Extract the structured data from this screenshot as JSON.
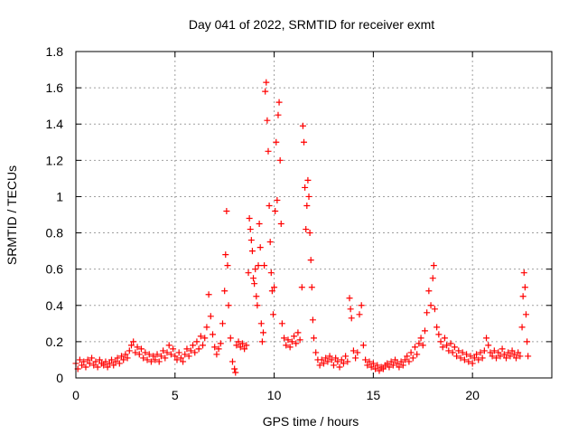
{
  "chart_data": {
    "type": "scatter",
    "title": "Day 041 of 2022, SRMTID for receiver exmt",
    "xlabel": "GPS time / hours",
    "ylabel": "SRMTID / TECUs",
    "xlim": [
      0,
      24
    ],
    "ylim": [
      0,
      1.8
    ],
    "xticks": [
      0,
      5,
      10,
      15,
      20
    ],
    "yticks": [
      0,
      0.2,
      0.4,
      0.6,
      0.8,
      1,
      1.2,
      1.4,
      1.6,
      1.8
    ],
    "ytick_labels": [
      "0",
      "0.2",
      "0.4",
      "0.6",
      "0.8",
      "1",
      "1.2",
      "1.4",
      "1.6",
      "1.8"
    ],
    "grid": true,
    "marker": "+",
    "color": "#ff0000",
    "series": [
      {
        "name": "SRMTID",
        "points": [
          [
            0.0,
            0.08
          ],
          [
            0.1,
            0.05
          ],
          [
            0.2,
            0.1
          ],
          [
            0.3,
            0.07
          ],
          [
            0.4,
            0.09
          ],
          [
            0.5,
            0.06
          ],
          [
            0.6,
            0.1
          ],
          [
            0.7,
            0.08
          ],
          [
            0.8,
            0.11
          ],
          [
            0.9,
            0.07
          ],
          [
            1.0,
            0.09
          ],
          [
            1.1,
            0.06
          ],
          [
            1.2,
            0.1
          ],
          [
            1.3,
            0.08
          ],
          [
            1.4,
            0.07
          ],
          [
            1.5,
            0.09
          ],
          [
            1.6,
            0.06
          ],
          [
            1.7,
            0.08
          ],
          [
            1.8,
            0.1
          ],
          [
            1.9,
            0.07
          ],
          [
            2.0,
            0.09
          ],
          [
            2.1,
            0.11
          ],
          [
            2.2,
            0.08
          ],
          [
            2.3,
            0.12
          ],
          [
            2.4,
            0.1
          ],
          [
            2.5,
            0.13
          ],
          [
            2.6,
            0.11
          ],
          [
            2.7,
            0.15
          ],
          [
            2.8,
            0.18
          ],
          [
            2.9,
            0.2
          ],
          [
            3.0,
            0.14
          ],
          [
            3.1,
            0.17
          ],
          [
            3.2,
            0.13
          ],
          [
            3.3,
            0.16
          ],
          [
            3.4,
            0.11
          ],
          [
            3.5,
            0.14
          ],
          [
            3.6,
            0.1
          ],
          [
            3.7,
            0.13
          ],
          [
            3.8,
            0.09
          ],
          [
            3.9,
            0.12
          ],
          [
            4.0,
            0.1
          ],
          [
            4.1,
            0.13
          ],
          [
            4.2,
            0.09
          ],
          [
            4.3,
            0.12
          ],
          [
            4.4,
            0.15
          ],
          [
            4.5,
            0.11
          ],
          [
            4.6,
            0.14
          ],
          [
            4.7,
            0.18
          ],
          [
            4.8,
            0.13
          ],
          [
            4.9,
            0.16
          ],
          [
            5.0,
            0.12
          ],
          [
            5.1,
            0.1
          ],
          [
            5.2,
            0.14
          ],
          [
            5.3,
            0.11
          ],
          [
            5.4,
            0.09
          ],
          [
            5.5,
            0.13
          ],
          [
            5.6,
            0.16
          ],
          [
            5.7,
            0.12
          ],
          [
            5.8,
            0.15
          ],
          [
            5.9,
            0.18
          ],
          [
            6.0,
            0.14
          ],
          [
            6.1,
            0.2
          ],
          [
            6.2,
            0.16
          ],
          [
            6.3,
            0.23
          ],
          [
            6.4,
            0.18
          ],
          [
            6.5,
            0.22
          ],
          [
            6.6,
            0.28
          ],
          [
            6.7,
            0.46
          ],
          [
            6.8,
            0.34
          ],
          [
            6.9,
            0.24
          ],
          [
            7.0,
            0.17
          ],
          [
            7.1,
            0.13
          ],
          [
            7.2,
            0.16
          ],
          [
            7.3,
            0.19
          ],
          [
            7.4,
            0.3
          ],
          [
            7.5,
            0.48
          ],
          [
            7.55,
            0.68
          ],
          [
            7.6,
            0.92
          ],
          [
            7.65,
            0.62
          ],
          [
            7.7,
            0.4
          ],
          [
            7.8,
            0.22
          ],
          [
            7.9,
            0.09
          ],
          [
            8.0,
            0.05
          ],
          [
            8.05,
            0.03
          ],
          [
            8.1,
            0.18
          ],
          [
            8.2,
            0.2
          ],
          [
            8.3,
            0.17
          ],
          [
            8.4,
            0.19
          ],
          [
            8.5,
            0.16
          ],
          [
            8.6,
            0.18
          ],
          [
            8.7,
            0.58
          ],
          [
            8.75,
            0.88
          ],
          [
            8.8,
            0.82
          ],
          [
            8.85,
            0.76
          ],
          [
            8.9,
            0.7
          ],
          [
            8.95,
            0.55
          ],
          [
            9.0,
            0.52
          ],
          [
            9.05,
            0.6
          ],
          [
            9.1,
            0.45
          ],
          [
            9.15,
            0.4
          ],
          [
            9.2,
            0.62
          ],
          [
            9.25,
            0.85
          ],
          [
            9.3,
            0.72
          ],
          [
            9.35,
            0.3
          ],
          [
            9.4,
            0.2
          ],
          [
            9.45,
            0.25
          ],
          [
            9.5,
            0.62
          ],
          [
            9.55,
            1.58
          ],
          [
            9.6,
            1.63
          ],
          [
            9.65,
            1.42
          ],
          [
            9.7,
            1.25
          ],
          [
            9.75,
            0.95
          ],
          [
            9.8,
            0.75
          ],
          [
            9.85,
            0.58
          ],
          [
            9.9,
            0.48
          ],
          [
            9.95,
            0.35
          ],
          [
            10.0,
            0.5
          ],
          [
            10.05,
            0.92
          ],
          [
            10.1,
            1.3
          ],
          [
            10.15,
            0.98
          ],
          [
            10.2,
            1.45
          ],
          [
            10.25,
            1.52
          ],
          [
            10.3,
            1.2
          ],
          [
            10.35,
            0.85
          ],
          [
            10.4,
            0.3
          ],
          [
            10.5,
            0.22
          ],
          [
            10.6,
            0.18
          ],
          [
            10.7,
            0.21
          ],
          [
            10.8,
            0.17
          ],
          [
            10.9,
            0.2
          ],
          [
            11.0,
            0.23
          ],
          [
            11.1,
            0.19
          ],
          [
            11.2,
            0.25
          ],
          [
            11.3,
            0.21
          ],
          [
            11.4,
            0.5
          ],
          [
            11.45,
            1.39
          ],
          [
            11.5,
            1.3
          ],
          [
            11.55,
            1.05
          ],
          [
            11.6,
            0.82
          ],
          [
            11.65,
            0.95
          ],
          [
            11.7,
            1.09
          ],
          [
            11.75,
            1.0
          ],
          [
            11.8,
            0.8
          ],
          [
            11.85,
            0.65
          ],
          [
            11.9,
            0.5
          ],
          [
            11.95,
            0.32
          ],
          [
            12.0,
            0.22
          ],
          [
            12.1,
            0.14
          ],
          [
            12.2,
            0.1
          ],
          [
            12.3,
            0.07
          ],
          [
            12.4,
            0.1
          ],
          [
            12.5,
            0.08
          ],
          [
            12.6,
            0.11
          ],
          [
            12.7,
            0.09
          ],
          [
            12.8,
            0.12
          ],
          [
            12.9,
            0.1
          ],
          [
            13.0,
            0.07
          ],
          [
            13.1,
            0.11
          ],
          [
            13.2,
            0.09
          ],
          [
            13.3,
            0.06
          ],
          [
            13.4,
            0.1
          ],
          [
            13.5,
            0.08
          ],
          [
            13.6,
            0.12
          ],
          [
            13.7,
            0.09
          ],
          [
            13.8,
            0.44
          ],
          [
            13.85,
            0.38
          ],
          [
            13.9,
            0.33
          ],
          [
            14.0,
            0.15
          ],
          [
            14.1,
            0.11
          ],
          [
            14.2,
            0.14
          ],
          [
            14.3,
            0.35
          ],
          [
            14.4,
            0.4
          ],
          [
            14.5,
            0.18
          ],
          [
            14.6,
            0.1
          ],
          [
            14.7,
            0.07
          ],
          [
            14.8,
            0.09
          ],
          [
            14.9,
            0.06
          ],
          [
            15.0,
            0.08
          ],
          [
            15.1,
            0.05
          ],
          [
            15.2,
            0.07
          ],
          [
            15.3,
            0.04
          ],
          [
            15.4,
            0.06
          ],
          [
            15.5,
            0.05
          ],
          [
            15.6,
            0.07
          ],
          [
            15.7,
            0.08
          ],
          [
            15.8,
            0.06
          ],
          [
            15.9,
            0.09
          ],
          [
            16.0,
            0.07
          ],
          [
            16.1,
            0.1
          ],
          [
            16.2,
            0.08
          ],
          [
            16.3,
            0.06
          ],
          [
            16.4,
            0.09
          ],
          [
            16.5,
            0.07
          ],
          [
            16.6,
            0.1
          ],
          [
            16.7,
            0.12
          ],
          [
            16.8,
            0.09
          ],
          [
            16.9,
            0.14
          ],
          [
            17.0,
            0.11
          ],
          [
            17.1,
            0.17
          ],
          [
            17.2,
            0.13
          ],
          [
            17.3,
            0.19
          ],
          [
            17.4,
            0.22
          ],
          [
            17.5,
            0.18
          ],
          [
            17.6,
            0.26
          ],
          [
            17.7,
            0.36
          ],
          [
            17.8,
            0.48
          ],
          [
            17.9,
            0.4
          ],
          [
            18.0,
            0.55
          ],
          [
            18.05,
            0.62
          ],
          [
            18.1,
            0.38
          ],
          [
            18.2,
            0.28
          ],
          [
            18.3,
            0.24
          ],
          [
            18.4,
            0.2
          ],
          [
            18.5,
            0.17
          ],
          [
            18.6,
            0.22
          ],
          [
            18.7,
            0.18
          ],
          [
            18.8,
            0.15
          ],
          [
            18.9,
            0.19
          ],
          [
            19.0,
            0.14
          ],
          [
            19.1,
            0.17
          ],
          [
            19.2,
            0.12
          ],
          [
            19.3,
            0.15
          ],
          [
            19.4,
            0.11
          ],
          [
            19.5,
            0.14
          ],
          [
            19.6,
            0.1
          ],
          [
            19.7,
            0.13
          ],
          [
            19.8,
            0.09
          ],
          [
            19.9,
            0.12
          ],
          [
            20.0,
            0.08
          ],
          [
            20.1,
            0.11
          ],
          [
            20.2,
            0.13
          ],
          [
            20.3,
            0.1
          ],
          [
            20.4,
            0.14
          ],
          [
            20.5,
            0.11
          ],
          [
            20.6,
            0.15
          ],
          [
            20.7,
            0.22
          ],
          [
            20.8,
            0.18
          ],
          [
            20.9,
            0.14
          ],
          [
            21.0,
            0.12
          ],
          [
            21.1,
            0.15
          ],
          [
            21.2,
            0.11
          ],
          [
            21.3,
            0.14
          ],
          [
            21.4,
            0.12
          ],
          [
            21.5,
            0.16
          ],
          [
            21.6,
            0.13
          ],
          [
            21.7,
            0.11
          ],
          [
            21.8,
            0.14
          ],
          [
            21.9,
            0.12
          ],
          [
            22.0,
            0.15
          ],
          [
            22.1,
            0.13
          ],
          [
            22.2,
            0.11
          ],
          [
            22.3,
            0.14
          ],
          [
            22.4,
            0.12
          ],
          [
            22.5,
            0.28
          ],
          [
            22.55,
            0.45
          ],
          [
            22.6,
            0.58
          ],
          [
            22.65,
            0.5
          ],
          [
            22.7,
            0.35
          ],
          [
            22.75,
            0.2
          ],
          [
            22.8,
            0.12
          ]
        ]
      }
    ]
  }
}
